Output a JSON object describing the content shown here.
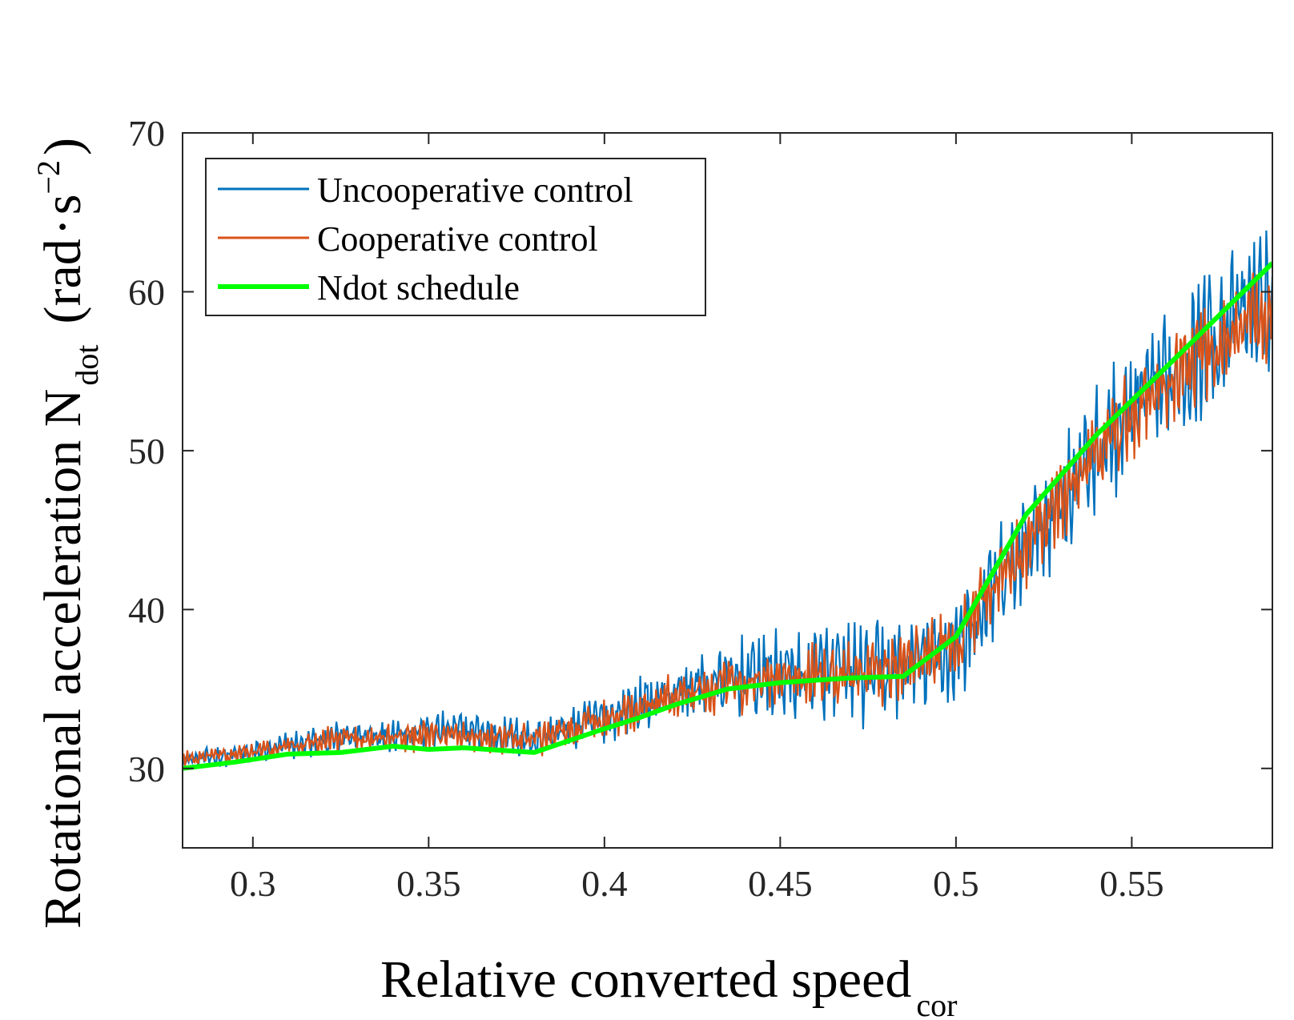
{
  "chart_data": {
    "type": "line",
    "xlabel": "Relative converted speed",
    "xlabel_subscript": "cor",
    "ylabel_main": "Rotational acceleration N",
    "ylabel_subscript": "dot",
    "ylabel_units_prefix": "(rad",
    "ylabel_units_dot": "·",
    "ylabel_units_s": "s",
    "ylabel_units_exp": "−2",
    "ylabel_units_suffix": ")",
    "xlim": [
      0.28,
      0.59
    ],
    "ylim": [
      25,
      70
    ],
    "xticks": [
      0.3,
      0.35,
      0.4,
      0.45,
      0.5,
      0.55
    ],
    "xtick_labels": [
      "0.3",
      "0.35",
      "0.4",
      "0.45",
      "0.5",
      "0.55"
    ],
    "yticks": [
      30,
      40,
      50,
      60,
      70
    ],
    "ytick_labels": [
      "30",
      "40",
      "50",
      "60",
      "70"
    ],
    "grid": false,
    "legend_position": "top-left",
    "series": [
      {
        "name": "Uncooperative control",
        "color": "#0072BD",
        "style": "noisy",
        "x": [
          0.28,
          0.3,
          0.32,
          0.34,
          0.36,
          0.38,
          0.4,
          0.42,
          0.44,
          0.46,
          0.48,
          0.5,
          0.52,
          0.54,
          0.56,
          0.58,
          0.59
        ],
        "mean": [
          30.5,
          31.0,
          31.8,
          32.3,
          32.4,
          31.8,
          33.2,
          34.8,
          35.8,
          35.9,
          36.0,
          37.5,
          44.0,
          50.0,
          54.5,
          58.5,
          59.5
        ],
        "amplitude": [
          0.4,
          0.6,
          0.8,
          0.9,
          1.0,
          1.0,
          1.2,
          1.5,
          2.0,
          2.4,
          2.6,
          2.8,
          3.0,
          3.2,
          3.4,
          3.5,
          3.5
        ]
      },
      {
        "name": "Cooperative control",
        "color": "#D95319",
        "style": "noisy",
        "x": [
          0.28,
          0.3,
          0.32,
          0.34,
          0.36,
          0.38,
          0.4,
          0.42,
          0.44,
          0.46,
          0.48,
          0.5,
          0.52,
          0.54,
          0.56,
          0.58,
          0.59
        ],
        "mean": [
          30.6,
          31.0,
          31.7,
          32.0,
          32.0,
          31.8,
          33.0,
          34.6,
          35.4,
          35.8,
          36.0,
          38.0,
          44.0,
          50.0,
          54.3,
          57.8,
          58.8
        ],
        "amplitude": [
          0.4,
          0.5,
          0.7,
          0.8,
          0.8,
          0.9,
          1.0,
          1.2,
          1.5,
          1.6,
          1.6,
          1.8,
          2.0,
          2.2,
          2.4,
          2.5,
          2.5
        ]
      },
      {
        "name": "Ndot schedule",
        "color": "#00FF00",
        "style": "smooth",
        "x": [
          0.28,
          0.295,
          0.31,
          0.325,
          0.34,
          0.35,
          0.36,
          0.38,
          0.4,
          0.41,
          0.42,
          0.435,
          0.45,
          0.47,
          0.485,
          0.5,
          0.52,
          0.54,
          0.56,
          0.59
        ],
        "y": [
          30.0,
          30.4,
          30.9,
          31.0,
          31.4,
          31.2,
          31.3,
          31.0,
          32.5,
          33.2,
          34.0,
          35.0,
          35.4,
          35.7,
          35.8,
          38.3,
          46.0,
          51.0,
          55.3,
          61.8
        ]
      }
    ]
  }
}
